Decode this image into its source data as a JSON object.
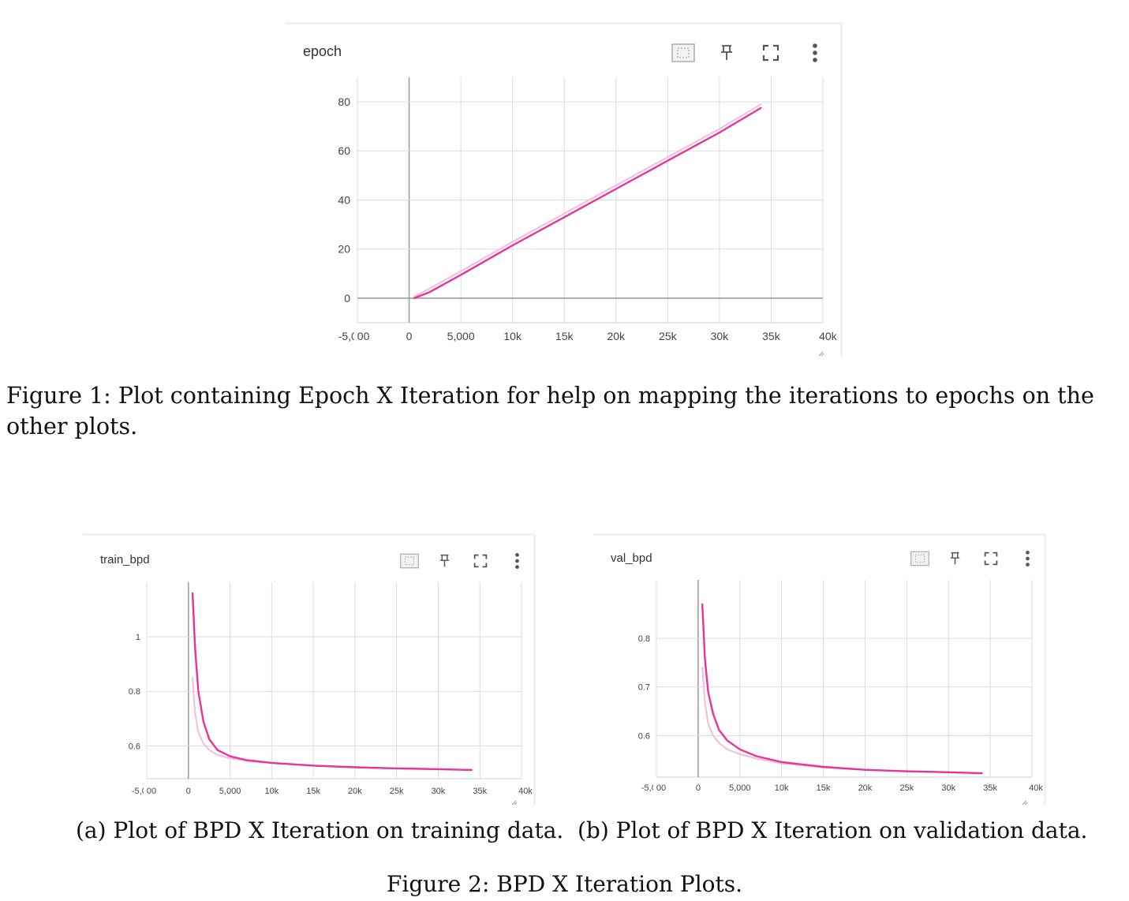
{
  "figure1": {
    "card_title": "epoch",
    "caption": "Figure 1: Plot containing Epoch X Iteration for help on mapping the iterations to epochs on the other plots."
  },
  "figure2": {
    "caption": "Figure 2: BPD X Iteration Plots.",
    "sub_a": {
      "card_title": "train_bpd",
      "caption": "(a) Plot of BPD X Iteration on training data."
    },
    "sub_b": {
      "card_title": "val_bpd",
      "caption": "(b) Plot of BPD X Iteration on validation data."
    }
  },
  "icons": [
    "fit-domain-icon",
    "pin-icon",
    "fullscreen-icon",
    "more-vert-icon"
  ],
  "colors": {
    "series": "#e8349a",
    "series_raw": "#f6bcdc",
    "grid": "#dddddd",
    "axis_zero": "#9e9e9e"
  },
  "chart_data": [
    {
      "type": "line",
      "title": "epoch",
      "xlim": [
        -5000,
        40000
      ],
      "ylim": [
        -10,
        90
      ],
      "xticks": [
        {
          "v": -5000,
          "label": "-5,000"
        },
        {
          "v": 0,
          "label": "0"
        },
        {
          "v": 5000,
          "label": "5,000"
        },
        {
          "v": 10000,
          "label": "10k"
        },
        {
          "v": 15000,
          "label": "15k"
        },
        {
          "v": 20000,
          "label": "20k"
        },
        {
          "v": 25000,
          "label": "25k"
        },
        {
          "v": 30000,
          "label": "30k"
        },
        {
          "v": 35000,
          "label": "35k"
        },
        {
          "v": 40000,
          "label": "40k"
        }
      ],
      "yticks": [
        {
          "v": 0,
          "label": "0"
        },
        {
          "v": 20,
          "label": "20"
        },
        {
          "v": 40,
          "label": "40"
        },
        {
          "v": 60,
          "label": "60"
        },
        {
          "v": 80,
          "label": "80"
        }
      ],
      "series": [
        {
          "style": "raw",
          "x": [
            500,
            2000,
            5000,
            10000,
            15000,
            20000,
            25000,
            30000,
            34000
          ],
          "y": [
            0.5,
            4,
            11,
            23,
            34.5,
            46,
            57.5,
            69,
            79
          ]
        },
        {
          "style": "smoothed",
          "x": [
            500,
            2000,
            5000,
            10000,
            15000,
            20000,
            25000,
            30000,
            34000
          ],
          "y": [
            0,
            2.5,
            9.5,
            21.5,
            33,
            44.5,
            56,
            67.5,
            77.5
          ]
        }
      ]
    },
    {
      "type": "line",
      "title": "train_bpd",
      "xlim": [
        -5000,
        40000
      ],
      "ylim": [
        0.48,
        1.2
      ],
      "xticks": [
        {
          "v": -5000,
          "label": "-5,000"
        },
        {
          "v": 0,
          "label": "0"
        },
        {
          "v": 5000,
          "label": "5,000"
        },
        {
          "v": 10000,
          "label": "10k"
        },
        {
          "v": 15000,
          "label": "15k"
        },
        {
          "v": 20000,
          "label": "20k"
        },
        {
          "v": 25000,
          "label": "25k"
        },
        {
          "v": 30000,
          "label": "30k"
        },
        {
          "v": 35000,
          "label": "35k"
        },
        {
          "v": 40000,
          "label": "40k"
        }
      ],
      "yticks": [
        {
          "v": 0.6,
          "label": "0.6"
        },
        {
          "v": 0.8,
          "label": "0.8"
        },
        {
          "v": 1,
          "label": "1"
        }
      ],
      "series": [
        {
          "style": "raw",
          "x": [
            500,
            800,
            1200,
            1800,
            2500,
            3500,
            5000,
            7000,
            10000,
            15000,
            20000,
            25000,
            30000,
            34000
          ],
          "y": [
            0.85,
            0.72,
            0.65,
            0.61,
            0.585,
            0.567,
            0.555,
            0.545,
            0.537,
            0.528,
            0.522,
            0.518,
            0.515,
            0.512
          ]
        },
        {
          "style": "smoothed",
          "x": [
            500,
            800,
            1200,
            1800,
            2500,
            3500,
            5000,
            7000,
            10000,
            15000,
            20000,
            25000,
            30000,
            34000
          ],
          "y": [
            1.16,
            0.96,
            0.8,
            0.69,
            0.625,
            0.585,
            0.562,
            0.548,
            0.538,
            0.528,
            0.522,
            0.518,
            0.515,
            0.512
          ]
        }
      ]
    },
    {
      "type": "line",
      "title": "val_bpd",
      "xlim": [
        -5000,
        40000
      ],
      "ylim": [
        0.515,
        0.92
      ],
      "xticks": [
        {
          "v": -5000,
          "label": "-5,000"
        },
        {
          "v": 0,
          "label": "0"
        },
        {
          "v": 5000,
          "label": "5,000"
        },
        {
          "v": 10000,
          "label": "10k"
        },
        {
          "v": 15000,
          "label": "15k"
        },
        {
          "v": 20000,
          "label": "20k"
        },
        {
          "v": 25000,
          "label": "25k"
        },
        {
          "v": 30000,
          "label": "30k"
        },
        {
          "v": 35000,
          "label": "35k"
        },
        {
          "v": 40000,
          "label": "40k"
        }
      ],
      "yticks": [
        {
          "v": 0.6,
          "label": "0.6"
        },
        {
          "v": 0.7,
          "label": "0.7"
        },
        {
          "v": 0.8,
          "label": "0.8"
        }
      ],
      "series": [
        {
          "style": "raw",
          "x": [
            500,
            800,
            1200,
            1800,
            2500,
            3500,
            5000,
            7000,
            10000,
            15000,
            20000,
            25000,
            30000,
            34000
          ],
          "y": [
            0.74,
            0.67,
            0.625,
            0.6,
            0.585,
            0.572,
            0.562,
            0.553,
            0.543,
            0.535,
            0.53,
            0.527,
            0.525,
            0.523
          ]
        },
        {
          "style": "smoothed",
          "x": [
            500,
            800,
            1200,
            1800,
            2500,
            3500,
            5000,
            7000,
            10000,
            15000,
            20000,
            25000,
            30000,
            34000
          ],
          "y": [
            0.87,
            0.76,
            0.69,
            0.645,
            0.612,
            0.59,
            0.572,
            0.558,
            0.546,
            0.536,
            0.53,
            0.527,
            0.525,
            0.523
          ]
        }
      ]
    }
  ]
}
